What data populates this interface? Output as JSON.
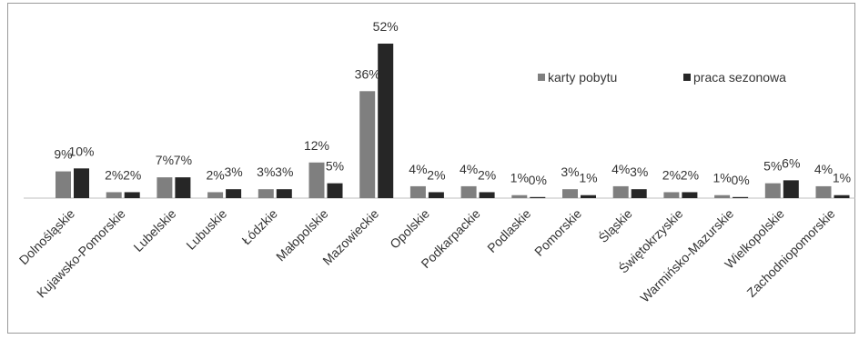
{
  "chart_data": {
    "type": "bar",
    "categories": [
      "Dolnośląskie",
      "Kujawsko-Pomorskie",
      "Lubelskie",
      "Lubuskie",
      "Łódzkie",
      "Małopolskie",
      "Mazowieckie",
      "Opolskie",
      "Podkarpackie",
      "Podlaskie",
      "Pomorskie",
      "Śląskie",
      "Świętokrzyskie",
      "Warmińsko-Mazurskie",
      "Wielkopolskie",
      "Zachodniopomorskie"
    ],
    "series": [
      {
        "name": "karty pobytu",
        "color": "#7f7f7f",
        "values": [
          9,
          2,
          7,
          2,
          3,
          12,
          36,
          4,
          4,
          1,
          3,
          4,
          2,
          1,
          5,
          4
        ],
        "labels": [
          "9%",
          "2%",
          "7%",
          "2%",
          "3%",
          "12%",
          "36%",
          "4%",
          "4%",
          "1%",
          "3%",
          "4%",
          "2%",
          "1%",
          "5%",
          "4%"
        ]
      },
      {
        "name": "praca sezonowa",
        "color": "#262626",
        "values": [
          10,
          2,
          7,
          3,
          3,
          5,
          52,
          2,
          2,
          0,
          1,
          3,
          2,
          0,
          6,
          1
        ],
        "labels": [
          "10%",
          "2%",
          "7%",
          "3%",
          "3%",
          "5%",
          "52%",
          "2%",
          "2%",
          "0%",
          "1%",
          "3%",
          "2%",
          "0%",
          "6%",
          "1%"
        ]
      }
    ],
    "ylim": [
      0,
      52
    ],
    "grid": false,
    "legend": "top-right",
    "title": "",
    "xlabel": "",
    "ylabel": ""
  }
}
